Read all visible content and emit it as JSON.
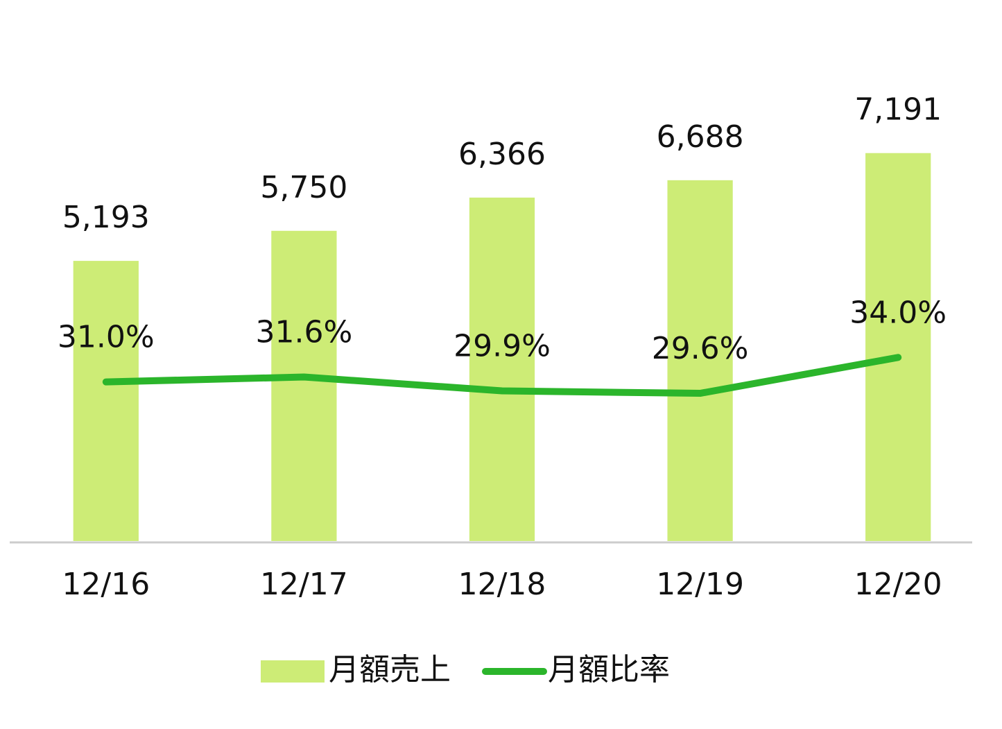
{
  "chart_data": {
    "type": "bar",
    "categories": [
      "12/16",
      "12/17",
      "12/18",
      "12/19",
      "12/20"
    ],
    "series": [
      {
        "name": "月額売上",
        "type": "bar",
        "color": "#cdec76",
        "values": [
          5193,
          5750,
          6366,
          6688,
          7191
        ],
        "value_labels": [
          "5,193",
          "5,750",
          "6,366",
          "6,688",
          "7,191"
        ]
      },
      {
        "name": "月額比率",
        "type": "line",
        "axis": "y2",
        "color": "#2bb52b",
        "values": [
          31.0,
          31.6,
          29.9,
          29.6,
          34.0
        ],
        "value_labels": [
          "31.0%",
          "31.6%",
          "29.9%",
          "29.6%",
          "34.0%"
        ]
      }
    ],
    "ylim": [
      0,
      9000
    ],
    "y2lim": [
      11.5,
      71
    ],
    "legend": "bottom"
  }
}
